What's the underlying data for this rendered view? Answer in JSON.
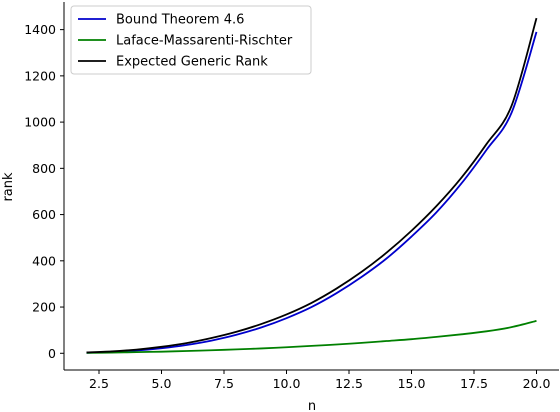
{
  "chart_data": {
    "type": "line",
    "xlabel": "n",
    "ylabel": "rank",
    "xlim": [
      1.1,
      20.9
    ],
    "ylim": [
      -72.3,
      1519.5
    ],
    "xticks": [
      2.5,
      5.0,
      7.5,
      10.0,
      12.5,
      15.0,
      17.5,
      20.0
    ],
    "xtick_labels": [
      "2.5",
      "5.0",
      "7.5",
      "10.0",
      "12.5",
      "15.0",
      "17.5",
      "20.0"
    ],
    "yticks": [
      0,
      200,
      400,
      600,
      800,
      1000,
      1200,
      1400
    ],
    "ytick_labels": [
      "0",
      "200",
      "400",
      "600",
      "800",
      "1000",
      "1200",
      "1400"
    ],
    "legend_placement": "top-left",
    "grid": false,
    "x": [
      2,
      3,
      4,
      5,
      6,
      7,
      8,
      9,
      10,
      11,
      12,
      13,
      14,
      15,
      16,
      17,
      18,
      19,
      20
    ],
    "series": [
      {
        "name": "Bound Theorem 4.6",
        "color": "#0000cc",
        "values": [
          2,
          6,
          12,
          22,
          36,
          55,
          80,
          112,
          152,
          200,
          260,
          330,
          410,
          505,
          610,
          735,
          880,
          1040,
          1390
        ]
      },
      {
        "name": "Laface-Massarenti-Rischter",
        "color": "#008000",
        "values": [
          2,
          3,
          5,
          7,
          10,
          13,
          17,
          21,
          26,
          32,
          38,
          45,
          53,
          61,
          71,
          82,
          95,
          113,
          140
        ]
      },
      {
        "name": "Expected Generic Rank",
        "color": "#000000",
        "values": [
          4,
          8,
          16,
          28,
          44,
          66,
          93,
          127,
          168,
          218,
          280,
          352,
          435,
          530,
          637,
          760,
          905,
          1070,
          1450
        ]
      }
    ]
  }
}
